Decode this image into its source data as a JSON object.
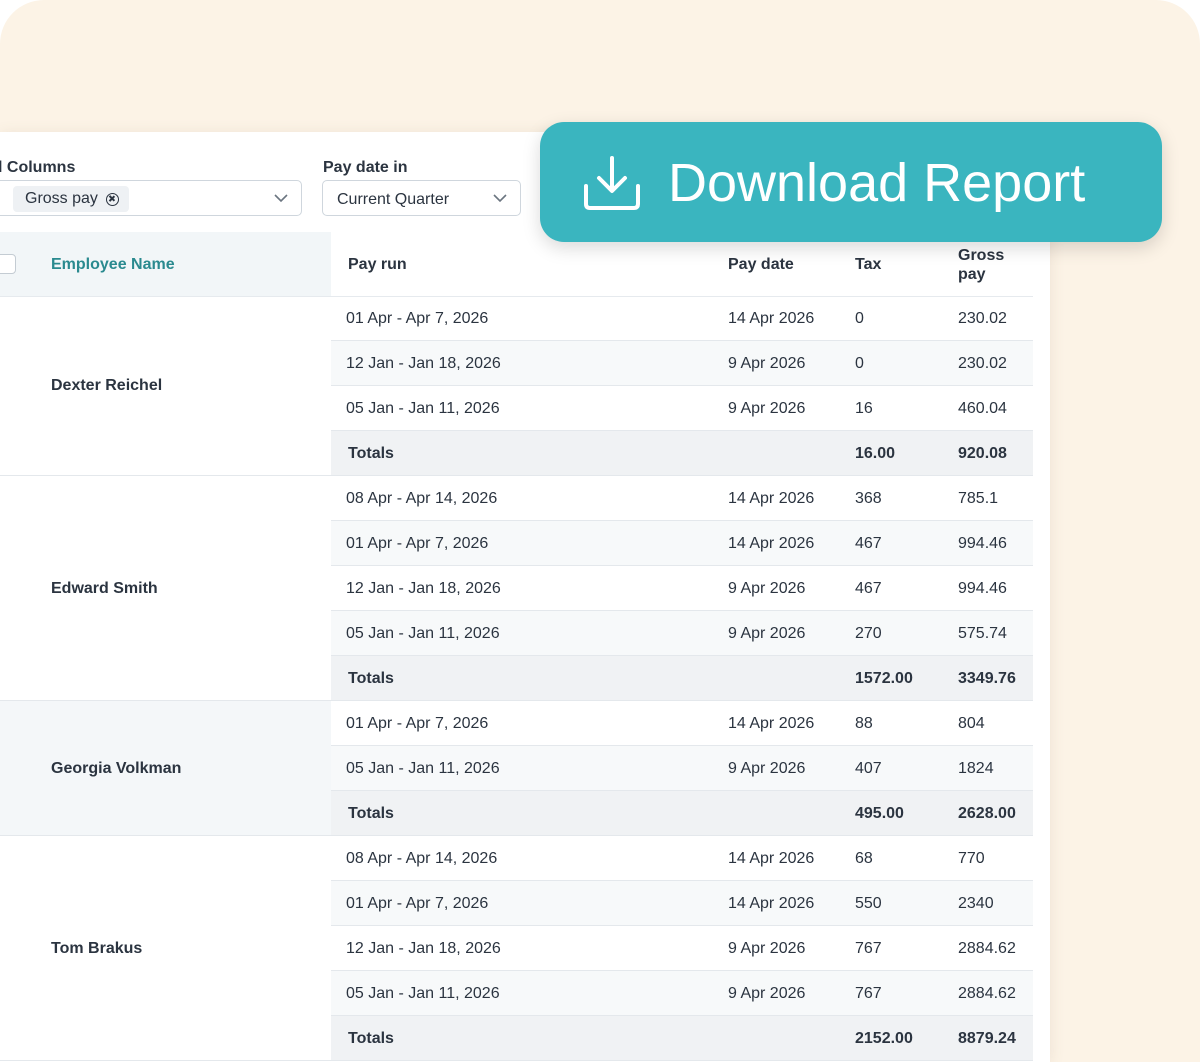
{
  "filters": {
    "columns_label": "l Columns",
    "columns_chip": "Gross pay",
    "paydate_label": "Pay date in",
    "paydate_value": "Current Quarter"
  },
  "download_button": {
    "label": "Download Report",
    "icon": "download-icon"
  },
  "table": {
    "headers": {
      "employee_name": "Employee Name",
      "pay_run": "Pay run",
      "pay_date": "Pay date",
      "tax": "Tax",
      "gross_pay": "Gross pay"
    },
    "employees": [
      {
        "name": "Dexter Reichel",
        "rows": [
          [
            "01 Apr - Apr 7, 2026",
            "14 Apr 2026",
            "0",
            "230.02"
          ],
          [
            "12 Jan - Jan 18, 2026",
            "9 Apr 2026",
            "0",
            "230.02"
          ],
          [
            "05 Jan - Jan 11, 2026",
            "9 Apr 2026",
            "16",
            "460.04"
          ]
        ],
        "totals": [
          "Totals",
          "16.00",
          "920.08"
        ]
      },
      {
        "name": "Edward Smith",
        "rows": [
          [
            "08 Apr - Apr 14, 2026",
            "14 Apr 2026",
            "368",
            "785.1"
          ],
          [
            "01 Apr - Apr 7, 2026",
            "14 Apr 2026",
            "467",
            "994.46"
          ],
          [
            "12 Jan - Jan 18, 2026",
            "9 Apr 2026",
            "467",
            "994.46"
          ],
          [
            "05 Jan - Jan 11, 2026",
            "9 Apr 2026",
            "270",
            "575.74"
          ]
        ],
        "totals": [
          "Totals",
          "1572.00",
          "3349.76"
        ]
      },
      {
        "name": "Georgia Volkman",
        "rows": [
          [
            "01 Apr - Apr 7, 2026",
            "14 Apr 2026",
            "88",
            "804"
          ],
          [
            "05 Jan - Jan 11, 2026",
            "9 Apr 2026",
            "407",
            "1824"
          ]
        ],
        "totals": [
          "Totals",
          "495.00",
          "2628.00"
        ]
      },
      {
        "name": "Tom Brakus",
        "rows": [
          [
            "08 Apr - Apr 14, 2026",
            "14 Apr 2026",
            "68",
            "770"
          ],
          [
            "01 Apr - Apr 7, 2026",
            "14 Apr 2026",
            "550",
            "2340"
          ],
          [
            "12 Jan - Jan 18, 2026",
            "9 Apr 2026",
            "767",
            "2884.62"
          ],
          [
            "05 Jan - Jan 11, 2026",
            "9 Apr 2026",
            "767",
            "2884.62"
          ]
        ],
        "totals": [
          "Totals",
          "2152.00",
          "8879.24"
        ]
      }
    ]
  }
}
